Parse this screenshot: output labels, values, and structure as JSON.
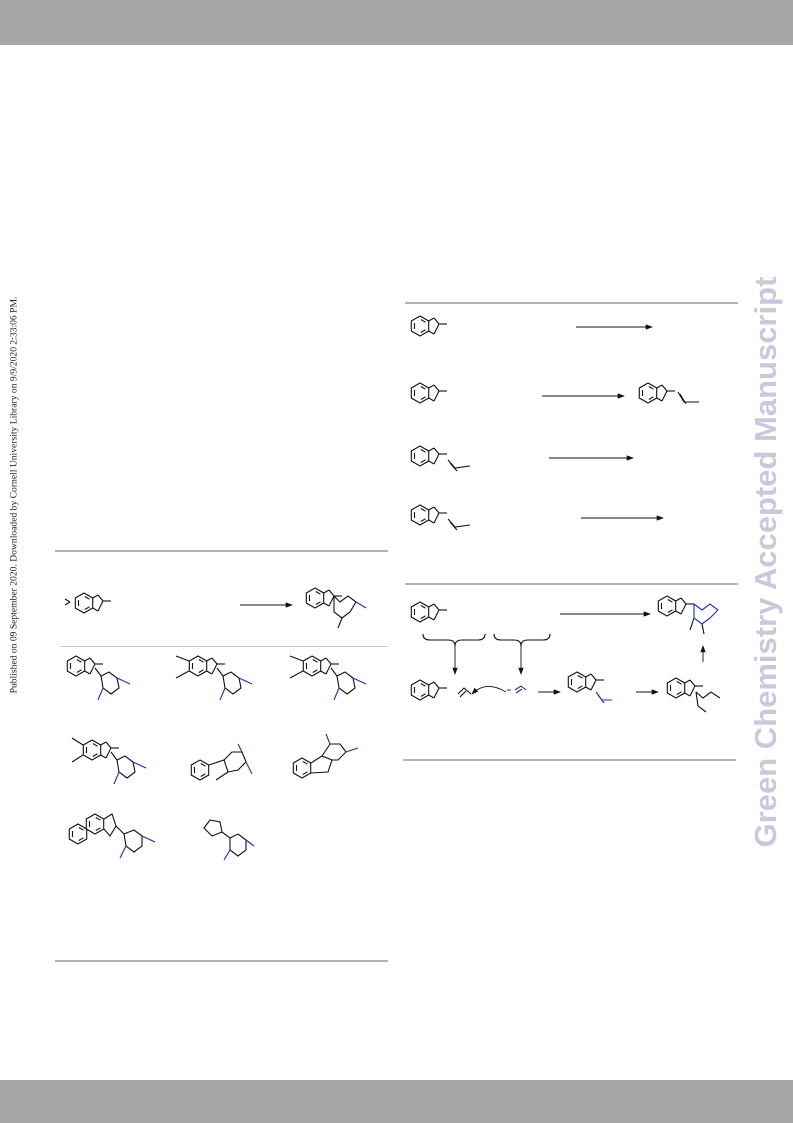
{
  "page": {
    "side_note": "Published on 09 September 2020. Downloaded by Cornell University Library on 9/9/2020 2:33:06 PM.",
    "watermark": "Green Chemistry Accepted Manuscript"
  },
  "colors": {
    "band": "#a6a6a6",
    "watermark": "#c9c9dc",
    "rule": "#b3b3b3",
    "bond": "#111111",
    "nitrogen_blue": "#1c2fb8"
  }
}
